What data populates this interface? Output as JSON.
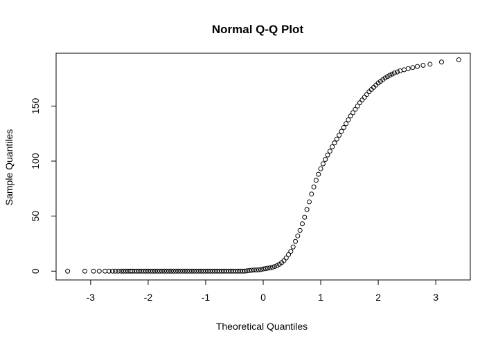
{
  "chart_data": {
    "type": "scatter",
    "title": "Normal Q-Q Plot",
    "xlabel": "Theoretical Quantiles",
    "ylabel": "Sample Quantiles",
    "xlim": [
      -3.6,
      3.6
    ],
    "ylim": [
      -8,
      198
    ],
    "x_ticks": [
      -3,
      -2,
      -1,
      0,
      1,
      2,
      3
    ],
    "x_tick_labels": [
      "-3",
      "-2",
      "-1",
      "0",
      "1",
      "2",
      "3"
    ],
    "y_ticks": [
      0,
      50,
      100,
      150
    ],
    "y_tick_labels": [
      "0",
      "50",
      "100",
      "150"
    ],
    "grid": false,
    "marker": "open-circle",
    "point_color": "#000000",
    "points": [
      [
        -3.4,
        0
      ],
      [
        -3.1,
        0
      ],
      [
        -2.95,
        0
      ],
      [
        -2.85,
        0
      ],
      [
        -2.75,
        0
      ],
      [
        -2.68,
        0
      ],
      [
        -2.62,
        0
      ],
      [
        -2.57,
        0
      ],
      [
        -2.52,
        0
      ],
      [
        -2.47,
        0
      ],
      [
        -2.43,
        0
      ],
      [
        -2.39,
        0
      ],
      [
        -2.35,
        0
      ],
      [
        -2.31,
        0
      ],
      [
        -2.28,
        0
      ],
      [
        -2.24,
        0
      ],
      [
        -2.2,
        0
      ],
      [
        -2.16,
        0
      ],
      [
        -2.12,
        0
      ],
      [
        -2.08,
        0
      ],
      [
        -2.04,
        0
      ],
      [
        -2.0,
        0
      ],
      [
        -1.96,
        0
      ],
      [
        -1.92,
        0
      ],
      [
        -1.88,
        0
      ],
      [
        -1.84,
        0
      ],
      [
        -1.8,
        0
      ],
      [
        -1.76,
        0
      ],
      [
        -1.72,
        0
      ],
      [
        -1.68,
        0
      ],
      [
        -1.64,
        0
      ],
      [
        -1.6,
        0
      ],
      [
        -1.56,
        0
      ],
      [
        -1.52,
        0
      ],
      [
        -1.48,
        0
      ],
      [
        -1.44,
        0
      ],
      [
        -1.4,
        0
      ],
      [
        -1.36,
        0
      ],
      [
        -1.32,
        0
      ],
      [
        -1.28,
        0
      ],
      [
        -1.24,
        0
      ],
      [
        -1.2,
        0
      ],
      [
        -1.16,
        0
      ],
      [
        -1.12,
        0
      ],
      [
        -1.08,
        0
      ],
      [
        -1.04,
        0
      ],
      [
        -1.0,
        0
      ],
      [
        -0.96,
        0
      ],
      [
        -0.92,
        0
      ],
      [
        -0.88,
        0
      ],
      [
        -0.84,
        0
      ],
      [
        -0.8,
        0
      ],
      [
        -0.76,
        0
      ],
      [
        -0.72,
        0
      ],
      [
        -0.68,
        0
      ],
      [
        -0.64,
        0
      ],
      [
        -0.6,
        0
      ],
      [
        -0.56,
        0
      ],
      [
        -0.52,
        0
      ],
      [
        -0.48,
        0
      ],
      [
        -0.44,
        0
      ],
      [
        -0.4,
        0
      ],
      [
        -0.36,
        0
      ],
      [
        -0.32,
        0
      ],
      [
        -0.28,
        0.3
      ],
      [
        -0.24,
        0.6
      ],
      [
        -0.2,
        0.8
      ],
      [
        -0.16,
        1
      ],
      [
        -0.12,
        1
      ],
      [
        -0.08,
        1.2
      ],
      [
        -0.04,
        1.5
      ],
      [
        0.0,
        2
      ],
      [
        0.04,
        2.3
      ],
      [
        0.08,
        2.7
      ],
      [
        0.12,
        3
      ],
      [
        0.16,
        3.5
      ],
      [
        0.2,
        4.2
      ],
      [
        0.24,
        5
      ],
      [
        0.28,
        6.2
      ],
      [
        0.32,
        7.7
      ],
      [
        0.36,
        9.5
      ],
      [
        0.4,
        12
      ],
      [
        0.44,
        15
      ],
      [
        0.48,
        18
      ],
      [
        0.52,
        22
      ],
      [
        0.56,
        27
      ],
      [
        0.6,
        32
      ],
      [
        0.64,
        37
      ],
      [
        0.68,
        43
      ],
      [
        0.72,
        49
      ],
      [
        0.76,
        56
      ],
      [
        0.8,
        63
      ],
      [
        0.84,
        70
      ],
      [
        0.88,
        76.5
      ],
      [
        0.92,
        82.5
      ],
      [
        0.96,
        88
      ],
      [
        1.0,
        93
      ],
      [
        1.04,
        97.5
      ],
      [
        1.08,
        101.5
      ],
      [
        1.12,
        105.5
      ],
      [
        1.16,
        109
      ],
      [
        1.2,
        113
      ],
      [
        1.24,
        116.5
      ],
      [
        1.28,
        120
      ],
      [
        1.32,
        123.5
      ],
      [
        1.36,
        127
      ],
      [
        1.4,
        130.5
      ],
      [
        1.44,
        134
      ],
      [
        1.48,
        137.5
      ],
      [
        1.52,
        141
      ],
      [
        1.56,
        144
      ],
      [
        1.6,
        147
      ],
      [
        1.64,
        150
      ],
      [
        1.68,
        153
      ],
      [
        1.72,
        155.5
      ],
      [
        1.76,
        158
      ],
      [
        1.8,
        160.5
      ],
      [
        1.84,
        163
      ],
      [
        1.88,
        165
      ],
      [
        1.92,
        167
      ],
      [
        1.96,
        169
      ],
      [
        2.0,
        171
      ],
      [
        2.04,
        172.5
      ],
      [
        2.08,
        174
      ],
      [
        2.12,
        175.5
      ],
      [
        2.16,
        176.8
      ],
      [
        2.2,
        178
      ],
      [
        2.24,
        179
      ],
      [
        2.28,
        180
      ],
      [
        2.33,
        181
      ],
      [
        2.38,
        182
      ],
      [
        2.45,
        183
      ],
      [
        2.52,
        184
      ],
      [
        2.6,
        185
      ],
      [
        2.68,
        186
      ],
      [
        2.78,
        187
      ],
      [
        2.9,
        188
      ],
      [
        3.1,
        190
      ],
      [
        3.4,
        192
      ]
    ]
  }
}
